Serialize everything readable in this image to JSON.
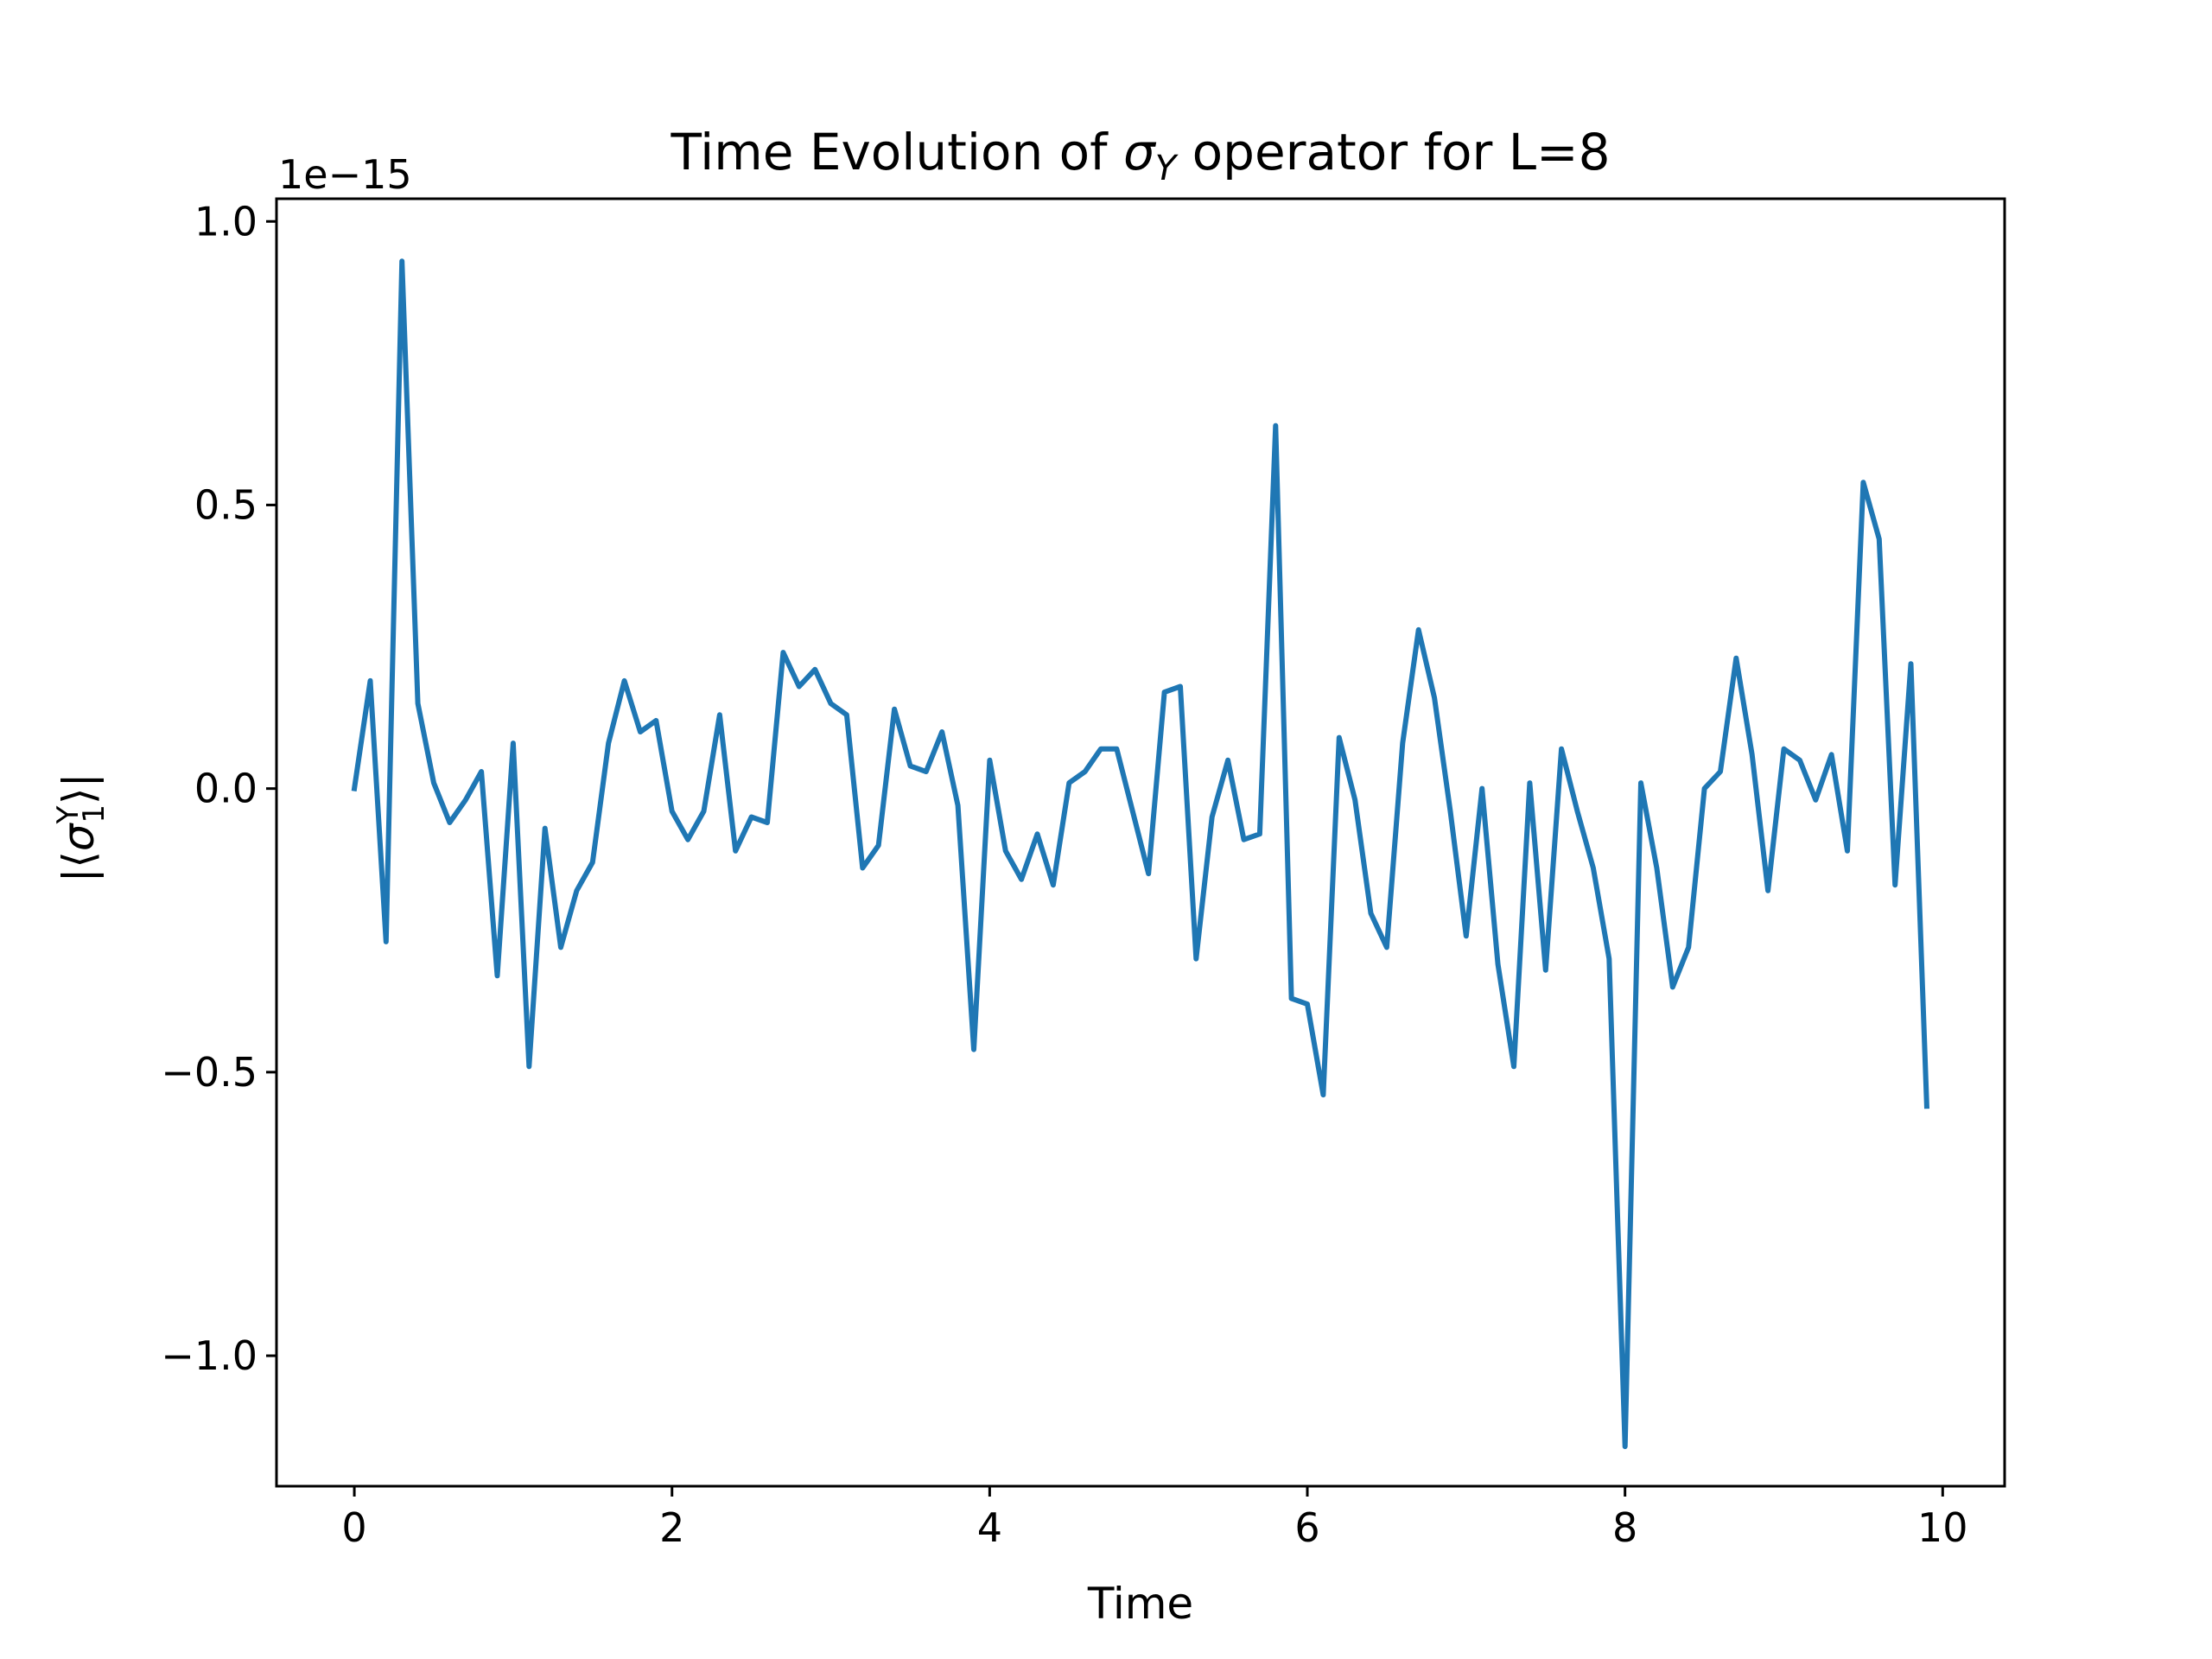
{
  "chart_data": {
    "type": "line",
    "title_prefix": "Time Evolution of ",
    "title_symbol": "σ",
    "title_symbol_sub": "Y",
    "title_suffix": " operator for L=8",
    "xlabel": "Time",
    "ylabel_prefix": "|⟨",
    "ylabel_symbol": "σ",
    "ylabel_sup": "Y",
    "ylabel_sub": "1",
    "ylabel_suffix": "⟩|",
    "y_offset_text": "1e−15",
    "xlim": [
      -0.49,
      10.39
    ],
    "ylim": [
      -1.23,
      1.04
    ],
    "x_ticks": [
      0,
      2,
      4,
      6,
      8,
      10
    ],
    "x_tick_labels": [
      "0",
      "2",
      "4",
      "6",
      "8",
      "10"
    ],
    "y_ticks": [
      1.0,
      0.5,
      0.0,
      -0.5,
      -1.0
    ],
    "y_tick_labels": [
      "1.0",
      "0.5",
      "0.0",
      "−0.5",
      "−1.0"
    ],
    "grid": false,
    "series": [
      {
        "name": "sigma_Y",
        "color": "#1f77b4",
        "x": [
          0.0,
          0.1,
          0.2,
          0.3,
          0.4,
          0.5,
          0.6,
          0.7,
          0.8,
          0.9,
          1.0,
          1.1,
          1.2,
          1.3,
          1.4,
          1.5,
          1.6,
          1.7,
          1.8,
          1.9,
          2.0,
          2.1,
          2.2,
          2.3,
          2.4,
          2.5,
          2.6,
          2.7,
          2.8,
          2.9,
          3.0,
          3.1,
          3.2,
          3.3,
          3.4,
          3.5,
          3.6,
          3.7,
          3.8,
          3.9,
          4.0,
          4.1,
          4.2,
          4.3,
          4.4,
          4.5,
          4.6,
          4.7,
          4.8,
          4.9,
          5.0,
          5.1,
          5.2,
          5.3,
          5.4,
          5.5,
          5.6,
          5.7,
          5.8,
          5.9,
          6.0,
          6.1,
          6.2,
          6.3,
          6.4,
          6.5,
          6.6,
          6.7,
          6.8,
          6.9,
          7.0,
          7.1,
          7.2,
          7.3,
          7.4,
          7.5,
          7.6,
          7.7,
          7.8,
          7.9,
          8.0,
          8.1,
          8.2,
          8.3,
          8.4,
          8.5,
          8.6,
          8.7,
          8.8,
          8.9,
          9.0,
          9.1,
          9.2,
          9.3,
          9.4,
          9.5,
          9.6,
          9.7,
          9.8,
          9.9
        ],
        "values": [
          0.0,
          0.19,
          -0.27,
          0.93,
          0.15,
          0.01,
          -0.06,
          -0.02,
          0.03,
          -0.33,
          0.08,
          -0.49,
          -0.07,
          -0.28,
          -0.18,
          -0.13,
          0.08,
          0.19,
          0.1,
          0.12,
          -0.04,
          -0.09,
          -0.04,
          0.13,
          -0.11,
          -0.05,
          -0.06,
          0.24,
          0.18,
          0.21,
          0.15,
          0.13,
          -0.14,
          -0.1,
          0.14,
          0.04,
          0.03,
          0.1,
          -0.03,
          -0.46,
          0.05,
          -0.11,
          -0.16,
          -0.08,
          -0.17,
          0.01,
          0.03,
          0.07,
          0.07,
          -0.04,
          -0.15,
          0.17,
          0.18,
          -0.3,
          -0.05,
          0.05,
          -0.09,
          -0.08,
          0.64,
          -0.37,
          -0.38,
          -0.54,
          0.09,
          -0.02,
          -0.22,
          -0.28,
          0.08,
          0.28,
          0.16,
          -0.04,
          -0.26,
          0.0,
          -0.31,
          -0.49,
          0.01,
          -0.32,
          0.07,
          -0.04,
          -0.14,
          -0.3,
          -1.16,
          0.01,
          -0.14,
          -0.35,
          -0.28,
          0.0,
          0.03,
          0.23,
          0.06,
          -0.18,
          0.07,
          0.05,
          -0.02,
          0.06,
          -0.11,
          0.54,
          0.44,
          -0.17,
          0.22,
          -0.56
        ]
      }
    ]
  }
}
